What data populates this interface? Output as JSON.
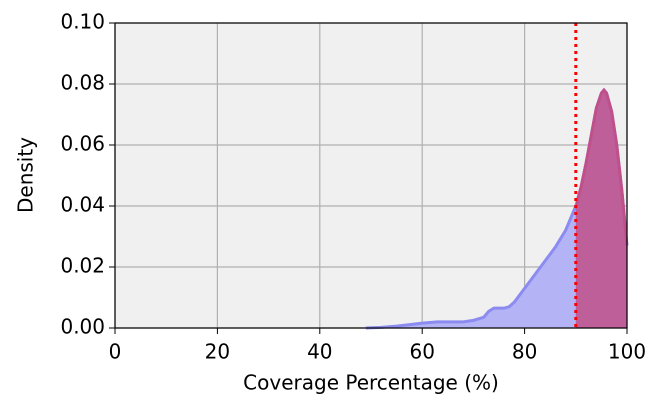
{
  "chart_data": {
    "type": "density",
    "xlabel": "Coverage Percentage (%)",
    "ylabel": "Density",
    "x": [
      49,
      52,
      55,
      58,
      60,
      63,
      65,
      68,
      70,
      72,
      73,
      74,
      75,
      76,
      77,
      78,
      80,
      82,
      84,
      86,
      88,
      90,
      91,
      92,
      93,
      94,
      95,
      95.5,
      96,
      97,
      98,
      99,
      100
    ],
    "values": [
      0,
      0.0002,
      0.0006,
      0.0012,
      0.0016,
      0.002,
      0.002,
      0.002,
      0.0025,
      0.0035,
      0.0055,
      0.0065,
      0.0065,
      0.0065,
      0.007,
      0.0085,
      0.013,
      0.0175,
      0.022,
      0.0265,
      0.032,
      0.04,
      0.046,
      0.054,
      0.063,
      0.072,
      0.077,
      0.078,
      0.077,
      0.071,
      0.06,
      0.045,
      0.027
    ],
    "color": "#8c8cf0",
    "fill": "#b3b3f5",
    "threshold": 90,
    "threshold_color": "#ff0000",
    "highlight_color": "#c0508a",
    "xlim": [
      0,
      100
    ],
    "xticks": [
      0,
      20,
      40,
      60,
      80,
      100
    ],
    "ylim": [
      0,
      0.1
    ],
    "yticks": [
      {
        "value": 0,
        "label": "0.00"
      },
      {
        "value": 0.02,
        "label": "0.02"
      },
      {
        "value": 0.04,
        "label": "0.04"
      },
      {
        "value": 0.06,
        "label": "0.06"
      },
      {
        "value": 0.08,
        "label": "0.08"
      },
      {
        "value": 0.1,
        "label": "0.10"
      }
    ],
    "grid": true
  }
}
